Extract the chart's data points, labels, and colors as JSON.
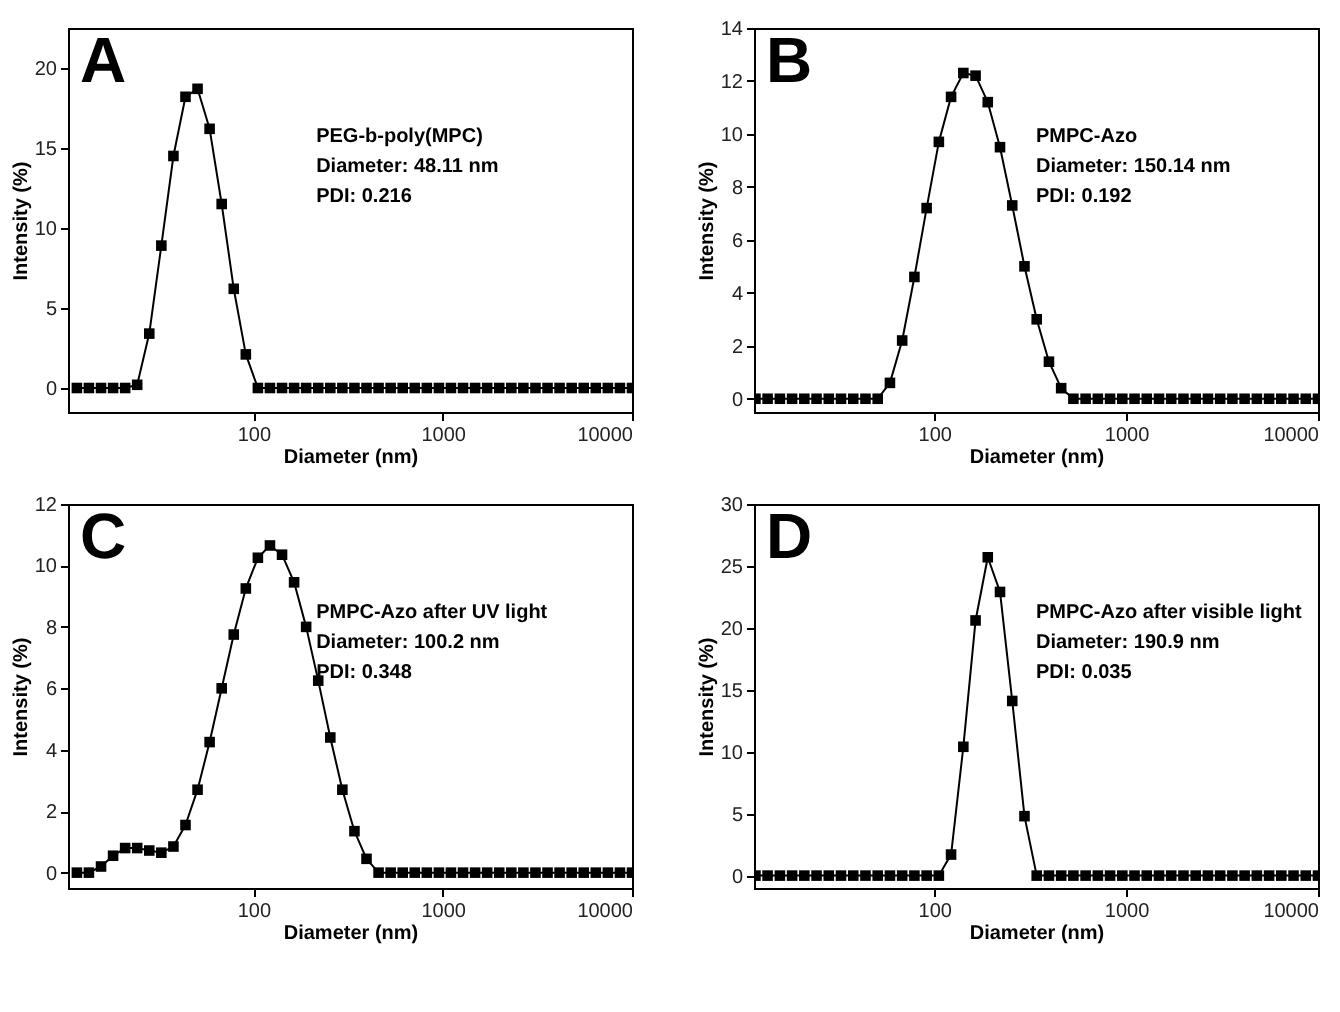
{
  "chart_data": [
    {
      "type": "line",
      "title": "A",
      "xlabel": "Diameter (nm)",
      "ylabel": "Intensity (%)",
      "log": "x",
      "marker": "square",
      "line_style": "solid",
      "annotations": [
        "PEG-b-poly(MPC)",
        "Diameter: 48.11 nm",
        "PDI: 0.216"
      ],
      "x": [
        11.7,
        13.54,
        15.69,
        18.17,
        21.04,
        24.36,
        28.21,
        32.67,
        37.84,
        43.82,
        50.75,
        58.77,
        68.06,
        78.82,
        91.28,
        105.7,
        122.4,
        141.8,
        164.2,
        190.1,
        220.2,
        255.0,
        295.3,
        342.0,
        396.1,
        458.7,
        531.2,
        615.1,
        712.4,
        825.0,
        955.4,
        1106,
        1281,
        1484,
        1718,
        1990,
        2305,
        2669,
        3091,
        3580,
        4145,
        4801,
        5560,
        6439,
        7456,
        8635,
        10000
      ],
      "xlim": [
        10.5,
        10000
      ],
      "xticks": [
        100,
        1000,
        10000
      ],
      "ylim": [
        -1.5,
        22.5
      ],
      "yticks": [
        0,
        5,
        10,
        15,
        20
      ],
      "series": [
        {
          "color": "#000000",
          "values": [
            0,
            0,
            0,
            0,
            0,
            0.2,
            3.4,
            8.9,
            14.5,
            18.2,
            18.7,
            16.2,
            11.5,
            6.2,
            2.1,
            0,
            0,
            0,
            0,
            0,
            0,
            0,
            0,
            0,
            0,
            0,
            0,
            0,
            0,
            0,
            0,
            0,
            0,
            0,
            0,
            0,
            0,
            0,
            0,
            0,
            0,
            0,
            0,
            0,
            0,
            0,
            0
          ]
        }
      ]
    },
    {
      "type": "line",
      "title": "B",
      "xlabel": "Diameter (nm)",
      "ylabel": "Intensity (%)",
      "log": "x",
      "marker": "square",
      "line_style": "solid",
      "annotations": [
        "PMPC-Azo",
        "Diameter: 150.14 nm",
        "PDI: 0.192"
      ],
      "x": [
        11.7,
        13.54,
        15.69,
        18.17,
        21.04,
        24.36,
        28.21,
        32.67,
        37.84,
        43.82,
        50.75,
        58.77,
        68.06,
        78.82,
        91.28,
        105.7,
        122.4,
        141.8,
        164.2,
        190.1,
        220.2,
        255.0,
        295.3,
        342.0,
        396.1,
        458.7,
        531.2,
        615.1,
        712.4,
        825.0,
        955.4,
        1106,
        1281,
        1484,
        1718,
        1990,
        2305,
        2669,
        3091,
        3580,
        4145,
        4801,
        5560,
        6439,
        7456,
        8635,
        10000
      ],
      "xlim": [
        11.5,
        10000
      ],
      "xticks": [
        100,
        1000,
        10000
      ],
      "ylim": [
        -0.5,
        14
      ],
      "yticks": [
        0,
        2,
        4,
        6,
        8,
        10,
        12,
        14
      ],
      "series": [
        {
          "color": "#000000",
          "values": [
            0,
            0,
            0,
            0,
            0,
            0,
            0,
            0,
            0,
            0,
            0,
            0.6,
            2.2,
            4.6,
            7.2,
            9.7,
            11.4,
            12.3,
            12.2,
            11.2,
            9.5,
            7.3,
            5.0,
            3.0,
            1.4,
            0.4,
            0,
            0,
            0,
            0,
            0,
            0,
            0,
            0,
            0,
            0,
            0,
            0,
            0,
            0,
            0,
            0,
            0,
            0,
            0,
            0,
            0
          ]
        }
      ]
    },
    {
      "type": "line",
      "title": "C",
      "xlabel": "Diameter (nm)",
      "ylabel": "Intensity (%)",
      "log": "x",
      "marker": "square",
      "line_style": "solid",
      "annotations": [
        "PMPC-Azo after UV light",
        "Diameter: 100.2 nm",
        "PDI: 0.348"
      ],
      "x": [
        11.7,
        13.54,
        15.69,
        18.17,
        21.04,
        24.36,
        28.21,
        32.67,
        37.84,
        43.82,
        50.75,
        58.77,
        68.06,
        78.82,
        91.28,
        105.7,
        122.4,
        141.8,
        164.2,
        190.1,
        220.2,
        255.0,
        295.3,
        342.0,
        396.1,
        458.7,
        531.2,
        615.1,
        712.4,
        825.0,
        955.4,
        1106,
        1281,
        1484,
        1718,
        1990,
        2305,
        2669,
        3091,
        3580,
        4145,
        4801,
        5560,
        6439,
        7456,
        8635,
        10000
      ],
      "xlim": [
        10.5,
        10000
      ],
      "xticks": [
        100,
        1000,
        10000
      ],
      "ylim": [
        -0.5,
        12
      ],
      "yticks": [
        0,
        2,
        4,
        6,
        8,
        10,
        12
      ],
      "series": [
        {
          "color": "#000000",
          "values": [
            0,
            0,
            0.2,
            0.55,
            0.8,
            0.8,
            0.72,
            0.65,
            0.85,
            1.55,
            2.7,
            4.25,
            6.0,
            7.75,
            9.25,
            10.25,
            10.65,
            10.35,
            9.45,
            8.0,
            6.25,
            4.4,
            2.7,
            1.35,
            0.45,
            0,
            0,
            0,
            0,
            0,
            0,
            0,
            0,
            0,
            0,
            0,
            0,
            0,
            0,
            0,
            0,
            0,
            0,
            0,
            0,
            0,
            0
          ]
        }
      ]
    },
    {
      "type": "line",
      "title": "D",
      "xlabel": "Diameter (nm)",
      "ylabel": "Intensity (%)",
      "log": "x",
      "marker": "square",
      "line_style": "solid",
      "annotations": [
        "PMPC-Azo after visible light",
        "Diameter: 190.9 nm",
        "PDI: 0.035"
      ],
      "x": [
        11.7,
        13.54,
        15.69,
        18.17,
        21.04,
        24.36,
        28.21,
        32.67,
        37.84,
        43.82,
        50.75,
        58.77,
        68.06,
        78.82,
        91.28,
        105.7,
        122.4,
        141.8,
        164.2,
        190.1,
        220.2,
        255.0,
        295.3,
        342.0,
        396.1,
        458.7,
        531.2,
        615.1,
        712.4,
        825.0,
        955.4,
        1106,
        1281,
        1484,
        1718,
        1990,
        2305,
        2669,
        3091,
        3580,
        4145,
        4801,
        5560,
        6439,
        7456,
        8635,
        10000
      ],
      "xlim": [
        11.5,
        10000
      ],
      "xticks": [
        100,
        1000,
        10000
      ],
      "ylim": [
        -1,
        30
      ],
      "yticks": [
        0,
        5,
        10,
        15,
        20,
        25,
        30
      ],
      "series": [
        {
          "color": "#000000",
          "values": [
            0,
            0,
            0,
            0,
            0,
            0,
            0,
            0,
            0,
            0,
            0,
            0,
            0,
            0,
            0,
            0,
            1.7,
            10.4,
            20.6,
            25.7,
            22.9,
            14.1,
            4.8,
            0,
            0,
            0,
            0,
            0,
            0,
            0,
            0,
            0,
            0,
            0,
            0,
            0,
            0,
            0,
            0,
            0,
            0,
            0,
            0,
            0,
            0,
            0,
            0
          ]
        }
      ]
    }
  ]
}
